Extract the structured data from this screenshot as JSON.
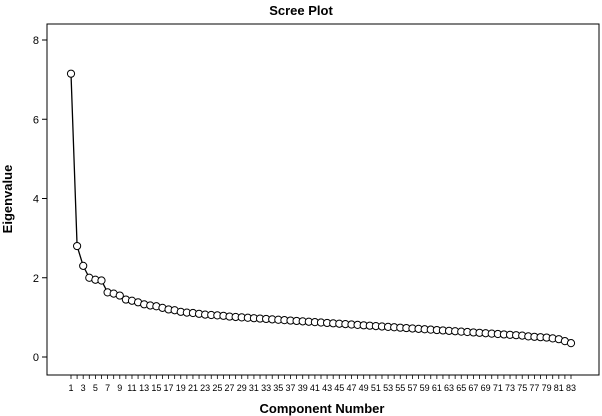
{
  "chart_data": {
    "type": "line",
    "title": "Scree Plot",
    "xlabel": "Component Number",
    "ylabel": "Eigenvalue",
    "ylim": [
      0,
      8
    ],
    "yticks": [
      0,
      2,
      4,
      6,
      8
    ],
    "xticks": [
      1,
      3,
      5,
      7,
      9,
      11,
      13,
      15,
      17,
      19,
      21,
      23,
      25,
      27,
      29,
      31,
      33,
      35,
      37,
      39,
      41,
      43,
      45,
      47,
      49,
      51,
      53,
      55,
      57,
      59,
      61,
      63,
      65,
      67,
      69,
      71,
      73,
      75,
      77,
      79,
      81,
      83
    ],
    "x": [
      1,
      2,
      3,
      4,
      5,
      6,
      7,
      8,
      9,
      10,
      11,
      12,
      13,
      14,
      15,
      16,
      17,
      18,
      19,
      20,
      21,
      22,
      23,
      24,
      25,
      26,
      27,
      28,
      29,
      30,
      31,
      32,
      33,
      34,
      35,
      36,
      37,
      38,
      39,
      40,
      41,
      42,
      43,
      44,
      45,
      46,
      47,
      48,
      49,
      50,
      51,
      52,
      53,
      54,
      55,
      56,
      57,
      58,
      59,
      60,
      61,
      62,
      63,
      64,
      65,
      66,
      67,
      68,
      69,
      70,
      71,
      72,
      73,
      74,
      75,
      76,
      77,
      78,
      79,
      80,
      81,
      82,
      83
    ],
    "values": [
      7.15,
      2.8,
      2.3,
      2.0,
      1.95,
      1.93,
      1.63,
      1.6,
      1.55,
      1.45,
      1.42,
      1.38,
      1.33,
      1.3,
      1.28,
      1.24,
      1.2,
      1.18,
      1.14,
      1.12,
      1.11,
      1.09,
      1.07,
      1.06,
      1.05,
      1.04,
      1.02,
      1.01,
      1.0,
      0.99,
      0.98,
      0.97,
      0.96,
      0.95,
      0.94,
      0.93,
      0.92,
      0.91,
      0.9,
      0.89,
      0.88,
      0.87,
      0.86,
      0.85,
      0.84,
      0.83,
      0.82,
      0.81,
      0.8,
      0.79,
      0.78,
      0.77,
      0.76,
      0.75,
      0.74,
      0.73,
      0.72,
      0.71,
      0.7,
      0.69,
      0.68,
      0.67,
      0.66,
      0.65,
      0.64,
      0.63,
      0.62,
      0.61,
      0.6,
      0.59,
      0.58,
      0.57,
      0.56,
      0.55,
      0.54,
      0.52,
      0.51,
      0.5,
      0.49,
      0.47,
      0.45,
      0.4,
      0.35
    ],
    "grid": false,
    "marker": "open-circle",
    "line_color": "#000000"
  }
}
